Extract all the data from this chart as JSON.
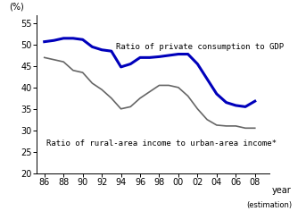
{
  "years_x": [
    1986,
    1987,
    1988,
    1989,
    1990,
    1991,
    1992,
    1993,
    1994,
    1995,
    1996,
    1997,
    1998,
    1999,
    2000,
    2001,
    2002,
    2003,
    2004,
    2005,
    2006,
    2007,
    2008
  ],
  "gdp_ratio": [
    50.7,
    51.0,
    51.5,
    51.5,
    51.2,
    49.5,
    48.8,
    48.5,
    44.8,
    45.5,
    47.0,
    47.0,
    47.2,
    47.5,
    47.8,
    47.8,
    45.5,
    42.0,
    38.5,
    36.5,
    35.8,
    35.5,
    36.8
  ],
  "rural_urban_ratio": [
    47.0,
    46.5,
    46.0,
    44.0,
    43.5,
    41.0,
    39.5,
    37.5,
    35.0,
    35.5,
    37.5,
    39.0,
    40.5,
    40.5,
    40.0,
    38.0,
    35.0,
    32.5,
    31.2,
    31.0,
    31.0,
    30.5,
    30.5
  ],
  "gdp_color": "#0000bb",
  "rural_color": "#666666",
  "background_color": "#ffffff",
  "ylim": [
    20,
    57
  ],
  "yticks": [
    20,
    25,
    30,
    35,
    40,
    45,
    50,
    55
  ],
  "xtick_labels": [
    "86",
    "88",
    "90",
    "92",
    "94",
    "96",
    "98",
    "00",
    "02",
    "04",
    "06",
    "08"
  ],
  "annotation_gdp": "Ratio of private consumption to GDP",
  "annotation_rural": "Ratio of rural-area income to urban-area income*"
}
